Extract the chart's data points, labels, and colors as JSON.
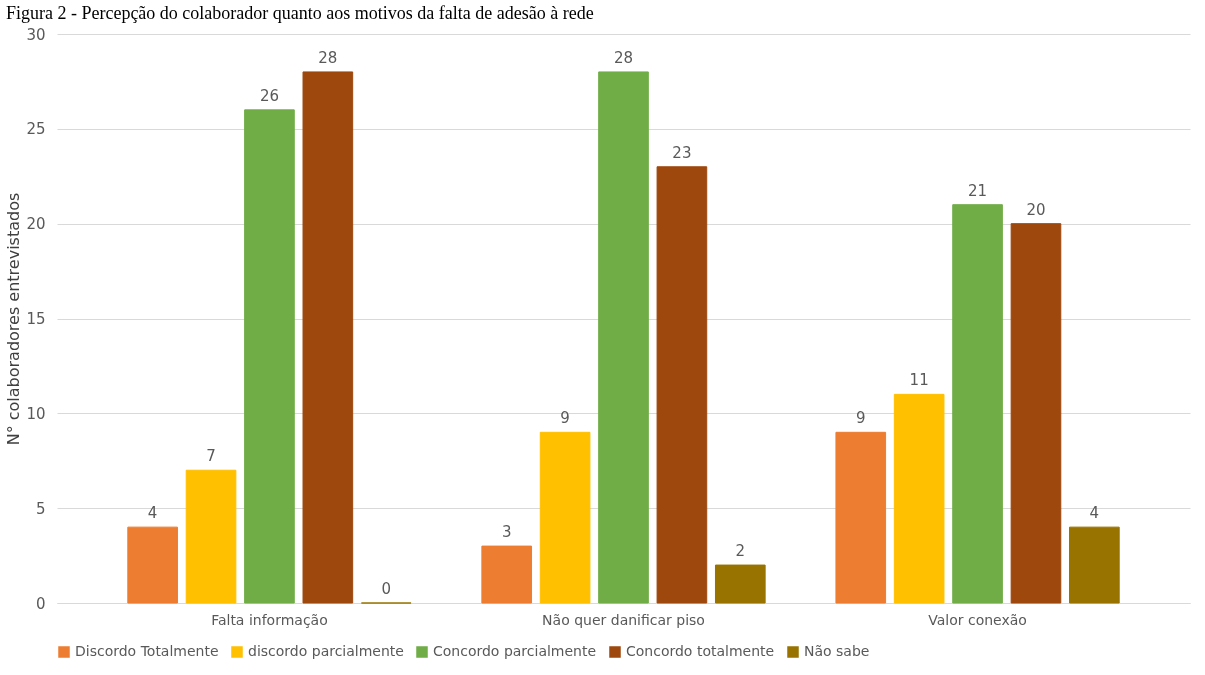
{
  "chart_data": {
    "type": "bar",
    "title": "Figura 2 - Percepção do colaborador quanto aos motivos da falta de adesão à rede",
    "ylabel": "N° colaboradores  entrevistados",
    "categories": [
      "Falta informação",
      "Não quer danificar piso",
      "Valor conexão"
    ],
    "series": [
      {
        "name": "Discordo Totalmente",
        "color": "#ed7d31",
        "values": [
          4,
          3,
          9
        ]
      },
      {
        "name": "discordo parcialmente",
        "color": "#ffc000",
        "values": [
          7,
          9,
          11
        ]
      },
      {
        "name": "Concordo parcialmente",
        "color": "#70ad47",
        "values": [
          26,
          28,
          21
        ]
      },
      {
        "name": "Concordo totalmente",
        "color": "#9e480e",
        "values": [
          28,
          23,
          20
        ]
      },
      {
        "name": "Não sabe",
        "color": "#997300",
        "values": [
          0,
          2,
          4
        ]
      }
    ],
    "ylim": [
      0,
      30
    ],
    "yticks": [
      0,
      5,
      10,
      15,
      20,
      25,
      30
    ],
    "grid": "y",
    "legend": "bottom",
    "data_labels": true
  }
}
